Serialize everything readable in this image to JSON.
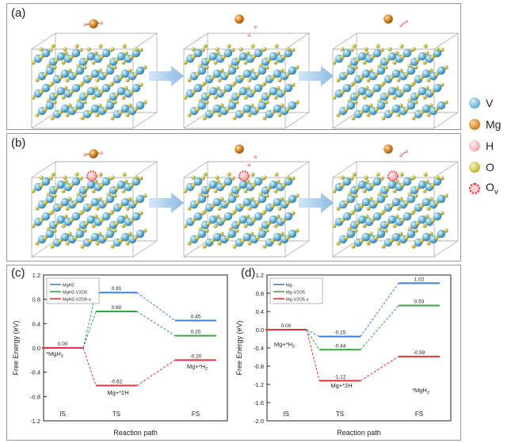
{
  "panels": {
    "a_label": "(a)",
    "b_label": "(b)",
    "c_label": "(c)",
    "d_label": "(d)"
  },
  "atom_legend": {
    "items": [
      {
        "label": "V",
        "color": "#6fb7da"
      },
      {
        "label": "Mg",
        "color": "#d98a2b"
      },
      {
        "label": "H",
        "color": "#f0b5b8"
      },
      {
        "label": "O",
        "color": "#c8c24a"
      },
      {
        "label": "Ov",
        "label_main": "O",
        "label_sub": "v",
        "color": "#e0303a"
      }
    ]
  },
  "chart_data": [
    {
      "type": "line",
      "panel": "(c)",
      "xlabel": "Reaction path",
      "ylabel": "Free Energy (eV)",
      "ylim": [
        -1.2,
        1.2
      ],
      "yticks": [
        "1.2",
        "0.8",
        "0.4",
        "0.0",
        "-0.4",
        "-0.8",
        "-1.2"
      ],
      "ytick_values": [
        1.2,
        0.8,
        0.4,
        0.0,
        -0.4,
        -0.8,
        -1.2
      ],
      "categories": [
        "IS",
        "TS",
        "FS"
      ],
      "series": [
        {
          "name": "MgH2",
          "name_main": "MgH",
          "name_sub": "2",
          "color": "#3f7fd6",
          "values": [
            0.0,
            0.91,
            0.45
          ],
          "labels": [
            "0.00",
            "0.91",
            "0.45"
          ]
        },
        {
          "name": "MgH2-V2O5",
          "name_main": "MgH",
          "name_sub": "2",
          "name_tail": "-V",
          "name_sub2": "2",
          "name_tail2": "O",
          "name_sub3": "5",
          "color": "#3ca24a",
          "values": [
            0.0,
            0.6,
            0.2
          ],
          "labels": [
            "",
            "0.60",
            "0.20"
          ]
        },
        {
          "name": "MgH2-V2O5-x",
          "color": "#e8323a",
          "values": [
            0.0,
            -0.62,
            -0.2
          ],
          "labels": [
            "",
            "-0.62",
            "-0.20"
          ]
        }
      ],
      "annotations": [
        {
          "text": "*MgH2",
          "main": "*MgH",
          "sub": "2",
          "at": "IS"
        },
        {
          "text": "Mg+*2H",
          "main": "Mg+*2H",
          "sub": "",
          "at": "TS"
        },
        {
          "text": "Mg+*H2",
          "main": "Mg+*H",
          "sub": "2",
          "at": "FS"
        }
      ]
    },
    {
      "type": "line",
      "panel": "(d)",
      "xlabel": "Reaction path",
      "ylabel": "Free Energy (eV)",
      "ylim": [
        -2.0,
        1.2
      ],
      "yticks": [
        "1.2",
        "0.8",
        "0.4",
        "0.0",
        "-0.4",
        "-0.8",
        "-1.2",
        "-1.6",
        "-2.0"
      ],
      "ytick_values": [
        1.2,
        0.8,
        0.4,
        0.0,
        -0.4,
        -0.8,
        -1.2,
        -1.6,
        -2.0
      ],
      "categories": [
        "IS",
        "TS",
        "FS"
      ],
      "series": [
        {
          "name": "Mg",
          "color": "#3f7fd6",
          "values": [
            0.0,
            -0.15,
            1.02
          ],
          "labels": [
            "0.00",
            "-0.15",
            "1.02"
          ]
        },
        {
          "name": "Mg-V2O5",
          "color": "#3ca24a",
          "values": [
            0.0,
            -0.44,
            0.53
          ],
          "labels": [
            "",
            "-0.44",
            "0.53"
          ]
        },
        {
          "name": "Mg-V2O5-x",
          "color": "#e8323a",
          "values": [
            0.0,
            -1.12,
            -0.59
          ],
          "labels": [
            "",
            "-1.12",
            "-0.59"
          ]
        }
      ],
      "annotations": [
        {
          "text": "Mg+*H2",
          "main": "Mg+*H",
          "sub": "2",
          "at": "IS"
        },
        {
          "text": "Mg+*2H",
          "main": "Mg+*2H",
          "sub": "",
          "at": "TS"
        },
        {
          "text": "*MgH2",
          "main": "*MgH",
          "sub": "2",
          "at": "FS"
        }
      ]
    }
  ]
}
